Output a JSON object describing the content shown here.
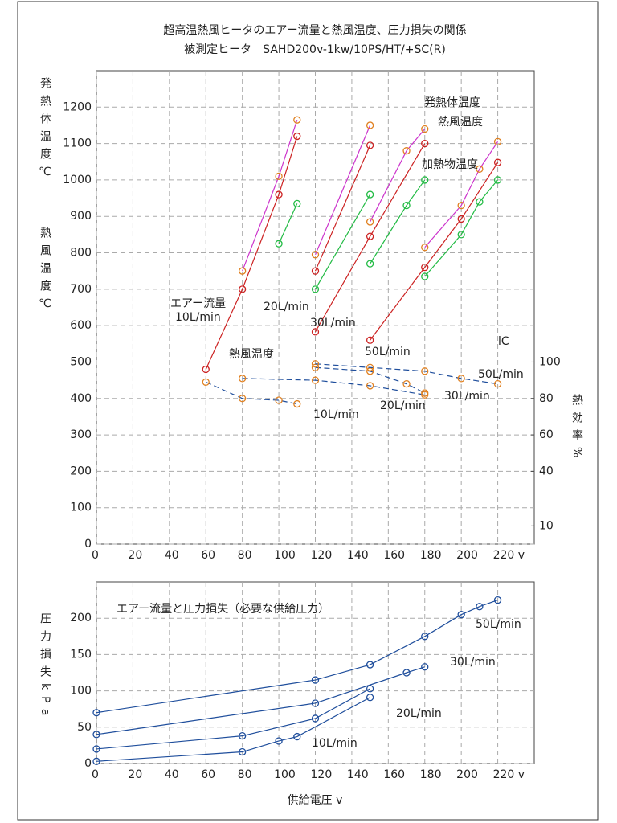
{
  "chart_data": [
    {
      "type": "line",
      "title": "超高温熱風ヒータのエアー流量と熱風温度、圧力損失の関係",
      "subtitle": "被測定ヒータ　SAHD200v-1kw/10PS/HT/+SC(R)",
      "y_label": "発熱体温度℃",
      "y_label_color": "#cc33cc",
      "y_label2": "熱風温度℃",
      "y_label2_color": "#cc2222",
      "y2_label": "熱効率%",
      "y2_label_color": "#1f4e9c",
      "xlim": [
        0,
        240
      ],
      "xticks": [
        0,
        20,
        40,
        60,
        80,
        100,
        120,
        140,
        160,
        180,
        {
          "value": 200,
          "label": "200"
        },
        {
          "value": 220,
          "label": "220 v"
        }
      ],
      "ylim": [
        0,
        1300
      ],
      "yticks": [
        0,
        100,
        200,
        300,
        400,
        500,
        600,
        700,
        800,
        900,
        1000,
        1100,
        1200
      ],
      "y2lim": [
        0,
        260
      ],
      "y2ticks": [
        10,
        40,
        60,
        80,
        100
      ],
      "grid": true,
      "series": [
        {
          "x": [
            60,
            80,
            100,
            110
          ],
          "values": [
            480,
            700,
            960,
            1120
          ],
          "color": "#cc2222",
          "marker_color": "#cc2222"
        },
        {
          "x": [
            120,
            150
          ],
          "values": [
            750,
            1095
          ],
          "color": "#cc2222",
          "marker_color": "#cc2222"
        },
        {
          "x": [
            120,
            150,
            180
          ],
          "values": [
            583,
            845,
            1100
          ],
          "color": "#cc2222",
          "marker_color": "#cc2222"
        },
        {
          "x": [
            150,
            180,
            200,
            220
          ],
          "values": [
            560,
            760,
            893,
            1048
          ],
          "color": "#cc2222",
          "marker_color": "#cc2222"
        },
        {
          "x": [
            80,
            100,
            110
          ],
          "values": [
            750,
            1010,
            1165
          ],
          "color": "#cc33cc",
          "marker_color": "#e08020"
        },
        {
          "x": [
            120,
            150
          ],
          "values": [
            795,
            1150
          ],
          "color": "#cc33cc",
          "marker_color": "#e08020"
        },
        {
          "x": [
            150,
            170,
            180
          ],
          "values": [
            885,
            1080,
            1140
          ],
          "color": "#cc33cc",
          "marker_color": "#e08020"
        },
        {
          "x": [
            180,
            200,
            210,
            220
          ],
          "values": [
            815,
            930,
            1030,
            1105
          ],
          "color": "#cc33cc",
          "marker_color": "#e08020"
        },
        {
          "x": [
            100,
            110
          ],
          "values": [
            825,
            935
          ],
          "color": "#22bb44",
          "marker_color": "#22bb44"
        },
        {
          "x": [
            120,
            150
          ],
          "values": [
            700,
            960
          ],
          "color": "#22bb44",
          "marker_color": "#22bb44"
        },
        {
          "x": [
            150,
            170,
            180
          ],
          "values": [
            770,
            930,
            1000
          ],
          "color": "#22bb44",
          "marker_color": "#22bb44"
        },
        {
          "x": [
            180,
            200,
            210,
            220
          ],
          "values": [
            735,
            850,
            940,
            1000
          ],
          "color": "#22bb44",
          "marker_color": "#22bb44"
        },
        {
          "x": [
            60,
            80,
            100,
            110
          ],
          "values": [
            89,
            80,
            79,
            77
          ],
          "color": "#1f4e9c",
          "marker_color": "#e08020",
          "axis": "y2",
          "dash": true
        },
        {
          "x": [
            80,
            120,
            150,
            180
          ],
          "values": [
            91,
            90,
            87,
            82
          ],
          "color": "#1f4e9c",
          "marker_color": "#e08020",
          "axis": "y2",
          "dash": true
        },
        {
          "x": [
            120,
            150,
            170,
            180
          ],
          "values": [
            97,
            95,
            88,
            83
          ],
          "color": "#1f4e9c",
          "marker_color": "#e08020",
          "axis": "y2",
          "dash": true
        },
        {
          "x": [
            120,
            150,
            180,
            200,
            220
          ],
          "values": [
            99,
            97,
            95,
            91,
            88
          ],
          "color": "#1f4e9c",
          "marker_color": "#e08020",
          "axis": "y2",
          "dash": true
        }
      ],
      "annotations": [
        {
          "text": "発熱体温度",
          "color": "#cc33cc"
        },
        {
          "text": "熱風温度",
          "color": "#cc2222"
        },
        {
          "text": "加熱物温度",
          "color": "#22bb44"
        },
        {
          "text": "エアー流量",
          "color": "#1f4e9c"
        },
        {
          "text": "10L/min",
          "color": "#1f4e9c"
        },
        {
          "text": "20L/min",
          "color": "#1f4e9c"
        },
        {
          "text": "30L/min",
          "color": "#1f4e9c"
        },
        {
          "text": "50L/min",
          "color": "#1f4e9c"
        },
        {
          "text": "熱風温度",
          "color": "#cc2222"
        },
        {
          "text": "50L/min",
          "color": "#1f4e9c"
        },
        {
          "text": "30L/min",
          "color": "#1f4e9c"
        },
        {
          "text": "20L/min",
          "color": "#1f4e9c"
        },
        {
          "text": "10L/min",
          "color": "#1f4e9c"
        },
        {
          "text": "lC",
          "color": "#e8a020"
        }
      ]
    },
    {
      "type": "line",
      "title": "エアー流量と圧力損失（必要な供給圧力）",
      "x_label": "供給電圧 v",
      "y_label": "圧力損失kPa",
      "y_label_color": "#1f4e9c",
      "xlim": [
        0,
        240
      ],
      "xticks": [
        0,
        20,
        40,
        60,
        80,
        100,
        120,
        140,
        160,
        180,
        200,
        {
          "value": 220,
          "label": "220 v"
        }
      ],
      "ylim": [
        0,
        250
      ],
      "yticks": [
        0,
        50,
        100,
        150,
        200
      ],
      "grid": true,
      "series": [
        {
          "name": "10L/min",
          "x": [
            0,
            80,
            100,
            110,
            150
          ],
          "values": [
            3,
            16,
            31,
            37,
            91
          ],
          "color": "#1f4e9c",
          "marker_color": "#1f4e9c"
        },
        {
          "name": "20L/min",
          "x": [
            0,
            80,
            120,
            150
          ],
          "values": [
            20,
            38,
            62,
            103
          ],
          "color": "#1f4e9c",
          "marker_color": "#1f4e9c"
        },
        {
          "name": "30L/min",
          "x": [
            0,
            120,
            170,
            180
          ],
          "values": [
            40,
            83,
            125,
            133
          ],
          "color": "#1f4e9c",
          "marker_color": "#1f4e9c"
        },
        {
          "name": "50L/min",
          "x": [
            0,
            120,
            150,
            180,
            200,
            210,
            220
          ],
          "values": [
            70,
            115,
            136,
            175,
            205,
            216,
            225
          ],
          "color": "#1f4e9c",
          "marker_color": "#1f4e9c"
        }
      ]
    }
  ]
}
